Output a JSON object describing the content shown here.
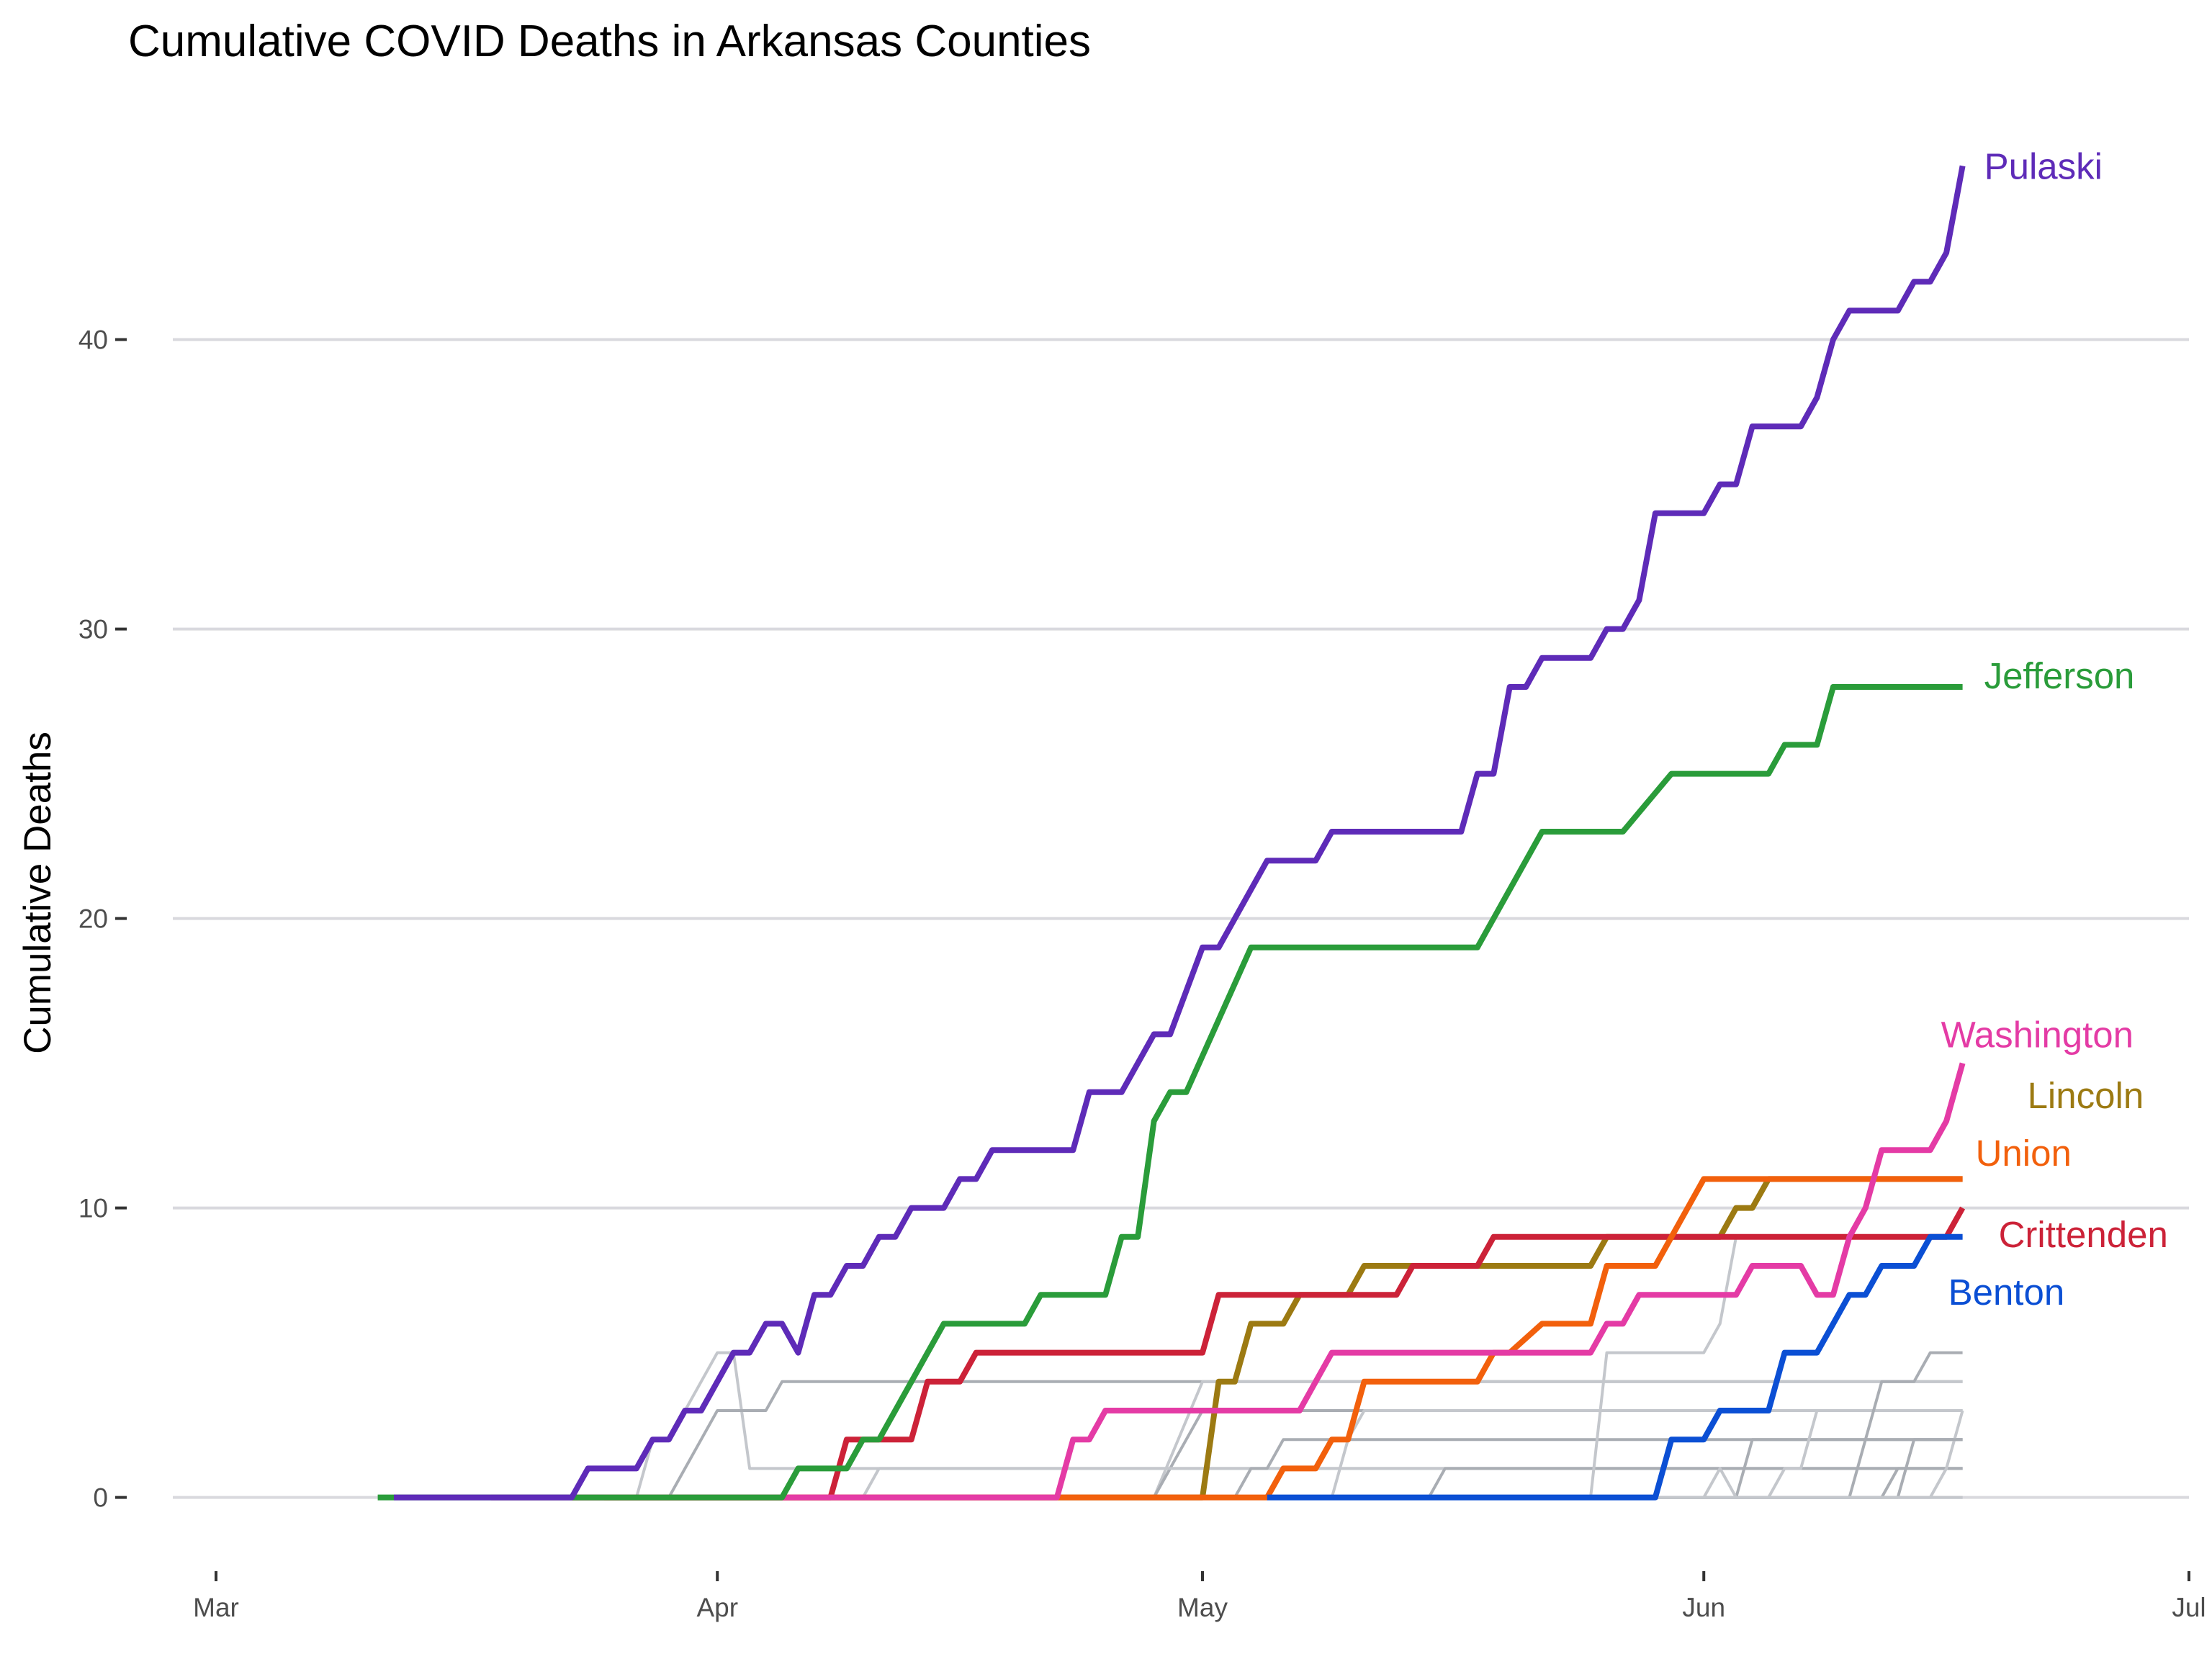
{
  "chart_data": {
    "type": "line",
    "title": "Cumulative COVID Deaths in Arkansas Counties",
    "xlabel": "",
    "ylabel": "Cumulative Deaths",
    "x_axis": {
      "type": "date",
      "range_days_from_mar1": [
        0,
        122
      ],
      "ticks": [
        {
          "label": "Mar",
          "day": 0
        },
        {
          "label": "Apr",
          "day": 31
        },
        {
          "label": "May",
          "day": 61
        },
        {
          "label": "Jun",
          "day": 92
        },
        {
          "label": "Jul",
          "day": 122
        }
      ]
    },
    "y_axis": {
      "range": [
        -2,
        48
      ],
      "ticks": [
        0,
        10,
        20,
        30,
        40
      ]
    },
    "grid": true,
    "legend": "direct-labels-right",
    "highlighted_series": [
      {
        "name": "Pulaski",
        "color": "#5e2bb8",
        "points": [
          [
            11,
            0
          ],
          [
            14,
            0
          ],
          [
            17,
            0
          ],
          [
            22,
            0
          ],
          [
            23,
            1
          ],
          [
            26,
            1
          ],
          [
            27,
            2
          ],
          [
            28,
            2
          ],
          [
            29,
            3
          ],
          [
            30,
            3
          ],
          [
            32,
            5
          ],
          [
            33,
            5
          ],
          [
            34,
            6
          ],
          [
            35,
            6
          ],
          [
            36,
            5
          ],
          [
            37,
            7
          ],
          [
            38,
            7
          ],
          [
            39,
            8
          ],
          [
            40,
            8
          ],
          [
            41,
            9
          ],
          [
            42,
            9
          ],
          [
            43,
            10
          ],
          [
            45,
            10
          ],
          [
            46,
            11
          ],
          [
            47,
            11
          ],
          [
            48,
            12
          ],
          [
            53,
            12
          ],
          [
            54,
            14
          ],
          [
            56,
            14
          ],
          [
            58,
            16
          ],
          [
            59,
            16
          ],
          [
            61,
            19
          ],
          [
            62,
            19
          ],
          [
            65,
            22
          ],
          [
            68,
            22
          ],
          [
            69,
            23
          ],
          [
            74,
            23
          ],
          [
            77,
            23
          ],
          [
            78,
            25
          ],
          [
            79,
            25
          ],
          [
            80,
            28
          ],
          [
            81,
            28
          ],
          [
            82,
            29
          ],
          [
            85,
            29
          ],
          [
            86,
            30
          ],
          [
            87,
            30
          ],
          [
            88,
            31
          ],
          [
            89,
            34
          ],
          [
            92,
            34
          ],
          [
            93,
            35
          ],
          [
            94,
            35
          ],
          [
            95,
            37
          ],
          [
            98,
            37
          ],
          [
            99,
            38
          ],
          [
            100,
            40
          ],
          [
            101,
            41
          ],
          [
            104,
            41
          ],
          [
            105,
            42
          ],
          [
            106,
            42
          ],
          [
            107,
            43
          ],
          [
            108,
            46
          ]
        ]
      },
      {
        "name": "Jefferson",
        "color": "#2a9c3a",
        "points": [
          [
            10,
            0
          ],
          [
            35,
            0
          ],
          [
            36,
            1
          ],
          [
            39,
            1
          ],
          [
            40,
            2
          ],
          [
            41,
            2
          ],
          [
            42,
            3
          ],
          [
            45,
            6
          ],
          [
            50,
            6
          ],
          [
            51,
            7
          ],
          [
            55,
            7
          ],
          [
            56,
            9
          ],
          [
            57,
            9
          ],
          [
            58,
            13
          ],
          [
            59,
            14
          ],
          [
            60,
            14
          ],
          [
            64,
            19
          ],
          [
            78,
            19
          ],
          [
            82,
            23
          ],
          [
            87,
            23
          ],
          [
            90,
            25
          ],
          [
            96,
            25
          ],
          [
            97,
            26
          ],
          [
            99,
            26
          ],
          [
            100,
            28
          ],
          [
            108,
            28
          ]
        ]
      },
      {
        "name": "Washington",
        "color": "#e43ba5",
        "points": [
          [
            17,
            0
          ],
          [
            52,
            0
          ],
          [
            53,
            2
          ],
          [
            54,
            2
          ],
          [
            55,
            3
          ],
          [
            64,
            3
          ],
          [
            67,
            3
          ],
          [
            68,
            4
          ],
          [
            69,
            5
          ],
          [
            77,
            5
          ],
          [
            84,
            5
          ],
          [
            85,
            5
          ],
          [
            86,
            6
          ],
          [
            87,
            6
          ],
          [
            88,
            7
          ],
          [
            94,
            7
          ],
          [
            95,
            8
          ],
          [
            98,
            8
          ],
          [
            99,
            7
          ],
          [
            100,
            7
          ],
          [
            101,
            9
          ],
          [
            102,
            10
          ],
          [
            103,
            12
          ],
          [
            106,
            12
          ],
          [
            107,
            13
          ],
          [
            108,
            15
          ]
        ]
      },
      {
        "name": "Lincoln",
        "color": "#9c7a12",
        "points": [
          [
            22,
            0
          ],
          [
            61,
            0
          ],
          [
            62,
            4
          ],
          [
            63,
            4
          ],
          [
            64,
            6
          ],
          [
            66,
            6
          ],
          [
            67,
            7
          ],
          [
            70,
            7
          ],
          [
            71,
            8
          ],
          [
            76,
            8
          ],
          [
            85,
            8
          ],
          [
            86,
            9
          ],
          [
            89,
            9
          ],
          [
            93,
            9
          ],
          [
            94,
            10
          ],
          [
            95,
            10
          ],
          [
            96,
            11
          ],
          [
            108,
            11
          ]
        ]
      },
      {
        "name": "Union",
        "color": "#f2600c",
        "points": [
          [
            24,
            0
          ],
          [
            65,
            0
          ],
          [
            66,
            1
          ],
          [
            68,
            1
          ],
          [
            69,
            2
          ],
          [
            70,
            2
          ],
          [
            71,
            4
          ],
          [
            78,
            4
          ],
          [
            79,
            5
          ],
          [
            80,
            5
          ],
          [
            82,
            6
          ],
          [
            85,
            6
          ],
          [
            86,
            8
          ],
          [
            89,
            8
          ],
          [
            90,
            9
          ],
          [
            91,
            10
          ],
          [
            92,
            11
          ],
          [
            108,
            11
          ]
        ]
      },
      {
        "name": "Crittenden",
        "color": "#cc2238",
        "points": [
          [
            22,
            0
          ],
          [
            38,
            0
          ],
          [
            39,
            2
          ],
          [
            40,
            2
          ],
          [
            43,
            2
          ],
          [
            44,
            4
          ],
          [
            46,
            4
          ],
          [
            47,
            5
          ],
          [
            53,
            5
          ],
          [
            56,
            5
          ],
          [
            57,
            5
          ],
          [
            61,
            5
          ],
          [
            62,
            7
          ],
          [
            66,
            7
          ],
          [
            67,
            7
          ],
          [
            73,
            7
          ],
          [
            74,
            8
          ],
          [
            78,
            8
          ],
          [
            79,
            9
          ],
          [
            84,
            9
          ],
          [
            95,
            9
          ],
          [
            107,
            9
          ],
          [
            108,
            10
          ]
        ]
      },
      {
        "name": "Benton",
        "color": "#0b4fd4",
        "points": [
          [
            65,
            0
          ],
          [
            89,
            0
          ],
          [
            90,
            2
          ],
          [
            92,
            2
          ],
          [
            93,
            3
          ],
          [
            95,
            3
          ],
          [
            96,
            3
          ],
          [
            97,
            5
          ],
          [
            98,
            5
          ],
          [
            99,
            5
          ],
          [
            100,
            6
          ],
          [
            101,
            7
          ],
          [
            102,
            7
          ],
          [
            103,
            8
          ],
          [
            104,
            8
          ],
          [
            105,
            8
          ],
          [
            106,
            9
          ],
          [
            108,
            9
          ]
        ]
      }
    ],
    "background_series": [
      {
        "name": "other-county",
        "points": [
          [
            22,
            0
          ],
          [
            26,
            0
          ],
          [
            27,
            2
          ],
          [
            28,
            2
          ],
          [
            31,
            5
          ],
          [
            32,
            5
          ],
          [
            33,
            1
          ],
          [
            34,
            1
          ],
          [
            35,
            1
          ],
          [
            108,
            1
          ]
        ]
      },
      {
        "name": "other-county",
        "points": [
          [
            24,
            0
          ],
          [
            28,
            0
          ],
          [
            29,
            1
          ],
          [
            31,
            3
          ],
          [
            33,
            3
          ],
          [
            34,
            3
          ],
          [
            35,
            4
          ],
          [
            108,
            4
          ]
        ]
      },
      {
        "name": "other-county",
        "points": [
          [
            30,
            0
          ],
          [
            58,
            0
          ],
          [
            61,
            4
          ],
          [
            108,
            4
          ]
        ]
      },
      {
        "name": "other-county",
        "points": [
          [
            25,
            0
          ],
          [
            58,
            0
          ],
          [
            60,
            2
          ],
          [
            61,
            3
          ],
          [
            108,
            3
          ]
        ]
      },
      {
        "name": "other-county",
        "points": [
          [
            26,
            0
          ],
          [
            40,
            0
          ],
          [
            41,
            1
          ],
          [
            108,
            1
          ]
        ]
      },
      {
        "name": "other-county",
        "points": [
          [
            30,
            0
          ],
          [
            63,
            0
          ],
          [
            64,
            1
          ],
          [
            65,
            1
          ],
          [
            66,
            2
          ],
          [
            108,
            2
          ]
        ]
      },
      {
        "name": "other-county",
        "points": [
          [
            35,
            0
          ],
          [
            69,
            0
          ],
          [
            70,
            2
          ],
          [
            71,
            3
          ],
          [
            108,
            3
          ]
        ]
      },
      {
        "name": "other-county",
        "points": [
          [
            40,
            0
          ],
          [
            75,
            0
          ],
          [
            76,
            1
          ],
          [
            108,
            1
          ]
        ]
      },
      {
        "name": "other-county",
        "points": [
          [
            45,
            0
          ],
          [
            85,
            0
          ],
          [
            86,
            5
          ],
          [
            92,
            5
          ],
          [
            93,
            6
          ],
          [
            94,
            9
          ],
          [
            108,
            9
          ]
        ]
      },
      {
        "name": "other-county",
        "points": [
          [
            50,
            0
          ],
          [
            94,
            0
          ],
          [
            95,
            2
          ],
          [
            108,
            2
          ]
        ]
      },
      {
        "name": "other-county",
        "points": [
          [
            55,
            0
          ],
          [
            96,
            0
          ],
          [
            97,
            1
          ],
          [
            98,
            1
          ],
          [
            99,
            3
          ],
          [
            108,
            3
          ]
        ]
      },
      {
        "name": "other-county",
        "points": [
          [
            60,
            0
          ],
          [
            101,
            0
          ],
          [
            102,
            2
          ],
          [
            103,
            4
          ],
          [
            105,
            4
          ],
          [
            106,
            5
          ],
          [
            108,
            5
          ]
        ]
      },
      {
        "name": "other-county",
        "points": [
          [
            62,
            0
          ],
          [
            92,
            0
          ],
          [
            93,
            1
          ],
          [
            94,
            0
          ],
          [
            108,
            0
          ]
        ]
      },
      {
        "name": "other-county",
        "points": [
          [
            70,
            0
          ],
          [
            103,
            0
          ],
          [
            104,
            1
          ],
          [
            108,
            1
          ]
        ]
      },
      {
        "name": "other-county",
        "points": [
          [
            72,
            0
          ],
          [
            106,
            0
          ],
          [
            107,
            1
          ],
          [
            108,
            3
          ]
        ]
      },
      {
        "name": "other-county",
        "points": [
          [
            40,
            0
          ],
          [
            104,
            0
          ],
          [
            105,
            2
          ],
          [
            108,
            2
          ]
        ]
      },
      {
        "name": "other-county",
        "points": [
          [
            80,
            0
          ],
          [
            108,
            0
          ]
        ]
      }
    ]
  }
}
